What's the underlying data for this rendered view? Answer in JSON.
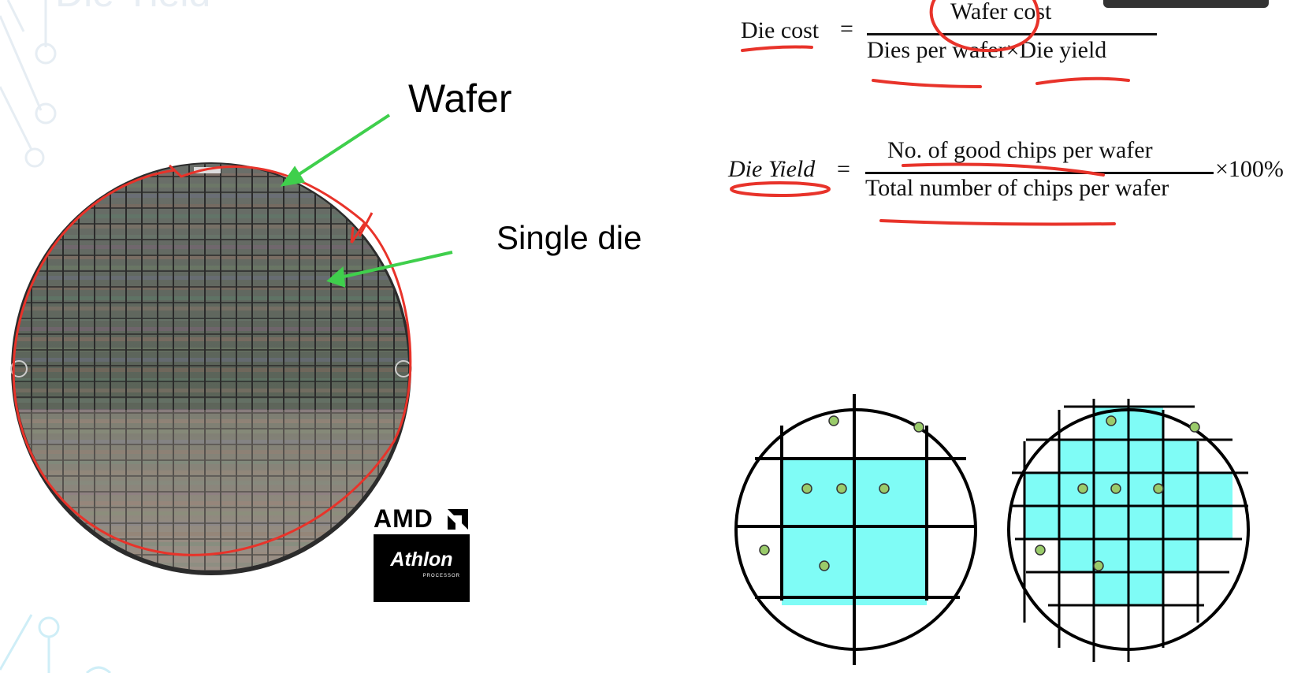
{
  "slide": {
    "title_partial": "Die Yield",
    "labels": {
      "wafer": "Wafer",
      "single_die": "Single die"
    },
    "logo": {
      "brand": "AMD",
      "product": "Athlon",
      "product_sub": "PROCESSOR"
    }
  },
  "formulas": {
    "die_cost": {
      "lhs": "Die cost",
      "equals": "=",
      "numerator": "Wafer cost",
      "denominator": "Dies per wafer×Die yield"
    },
    "die_yield": {
      "lhs": "Die Yield",
      "equals": "=",
      "numerator": "No.  of good chips per wafer",
      "denominator": "Total number of chips per wafer",
      "multiplier": "×100%"
    }
  },
  "colors": {
    "die_fill": "#7ffcf6",
    "defect_dot": "#9acb6a",
    "annotation_red": "#e8332a",
    "arrow_green": "#3fcf4c",
    "decor_line": "#e4ecf2"
  },
  "wafer_diagrams": [
    {
      "name": "large-die-wafer",
      "grid_cells": 3,
      "good_dies_highlighted": 4,
      "defects": 7
    },
    {
      "name": "small-die-wafer",
      "grid_cells": 6,
      "good_dies_highlighted": 22,
      "defects": 7
    }
  ]
}
